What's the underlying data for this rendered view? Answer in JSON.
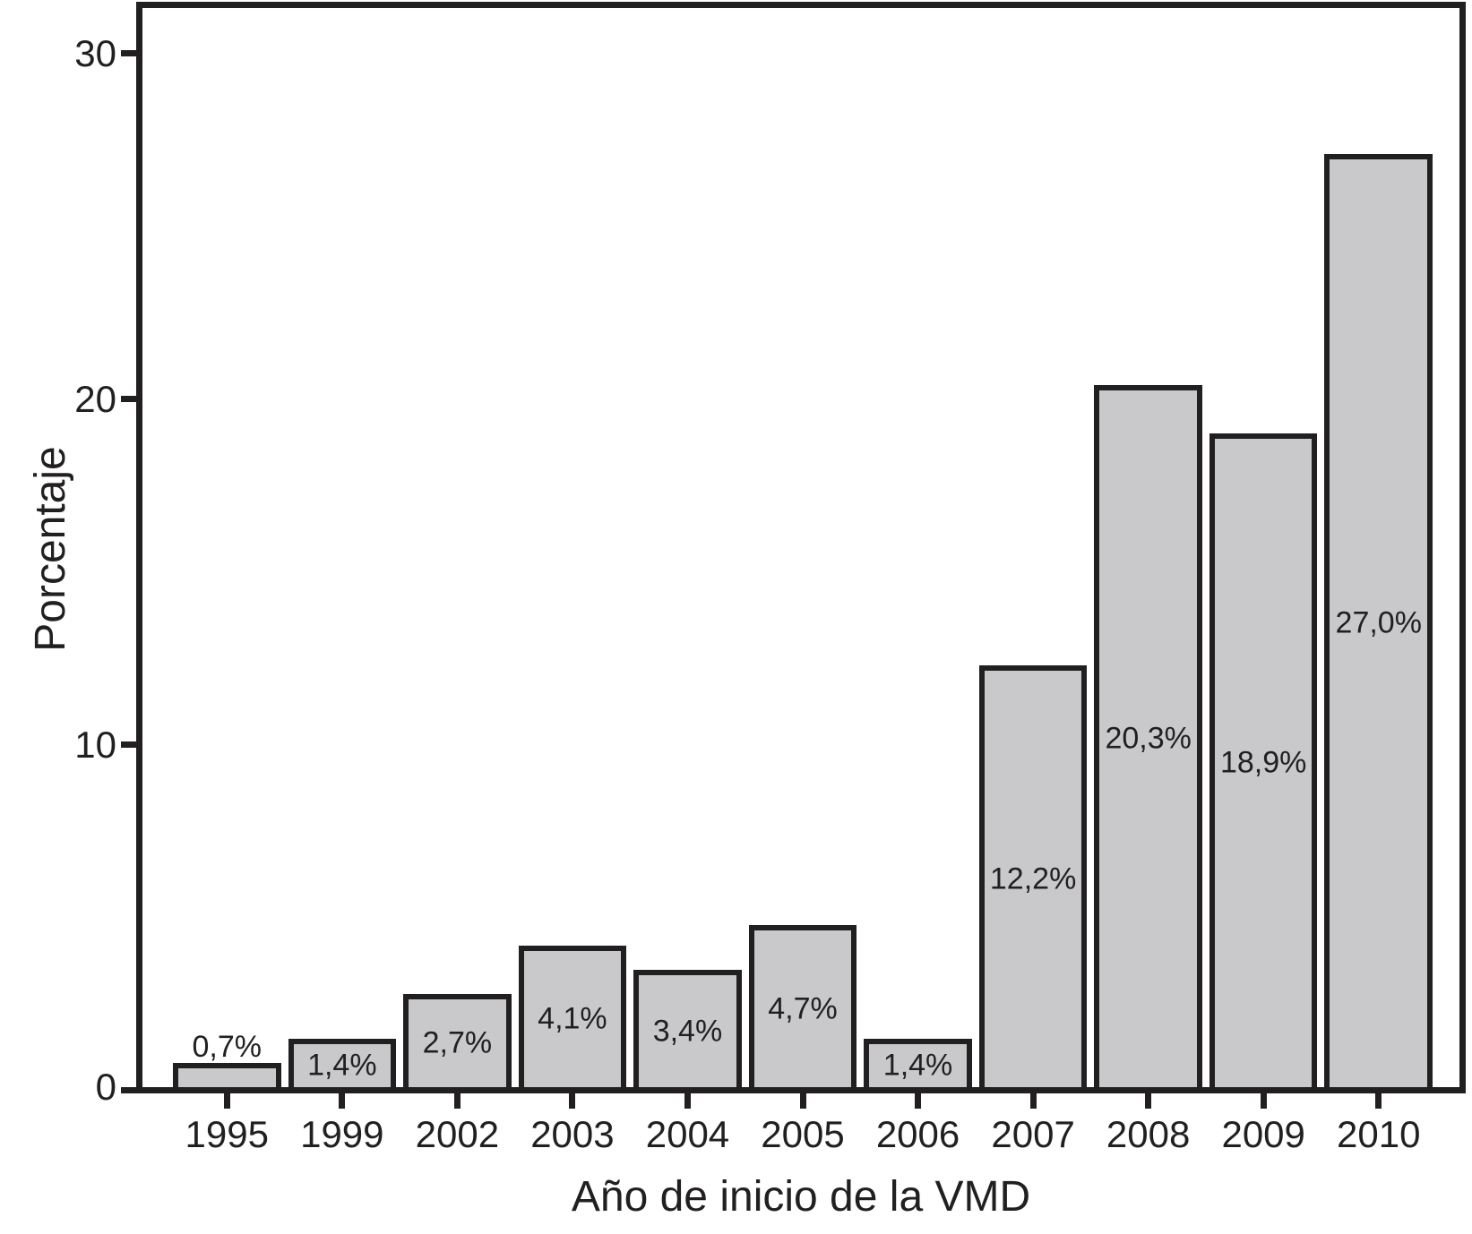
{
  "figure": {
    "background": "#ffffff",
    "ink_color": "#221f20",
    "bar_fill": "#c9c9cb"
  },
  "chart_data": {
    "type": "bar",
    "title": "",
    "xlabel": "Año de inicio de la VMD",
    "ylabel": "Porcentaje",
    "categories": [
      "1995",
      "1999",
      "2002",
      "2003",
      "2004",
      "2005",
      "2006",
      "2007",
      "2008",
      "2009",
      "2010"
    ],
    "values": [
      0.7,
      1.4,
      2.7,
      4.1,
      3.4,
      4.7,
      1.4,
      12.2,
      20.3,
      18.9,
      27.0
    ],
    "bar_labels": [
      "0,7%",
      "1,4%",
      "2,7%",
      "4,1%",
      "3,4%",
      "4,7%",
      "1,4%",
      "12,2%",
      "20,3%",
      "18,9%",
      "27,0%"
    ],
    "label_positions": [
      "above",
      "inside",
      "inside",
      "inside",
      "inside",
      "inside",
      "inside",
      "inside",
      "inside",
      "inside",
      "inside"
    ],
    "y_ticks": [
      0,
      10,
      20,
      30
    ],
    "y_tick_labels": [
      "0",
      "10",
      "20",
      "30"
    ],
    "ylim": [
      0,
      31.2
    ],
    "grid": false,
    "legend": "none",
    "bar_label_placement": "centered inside bars; above bar for smallest value"
  }
}
